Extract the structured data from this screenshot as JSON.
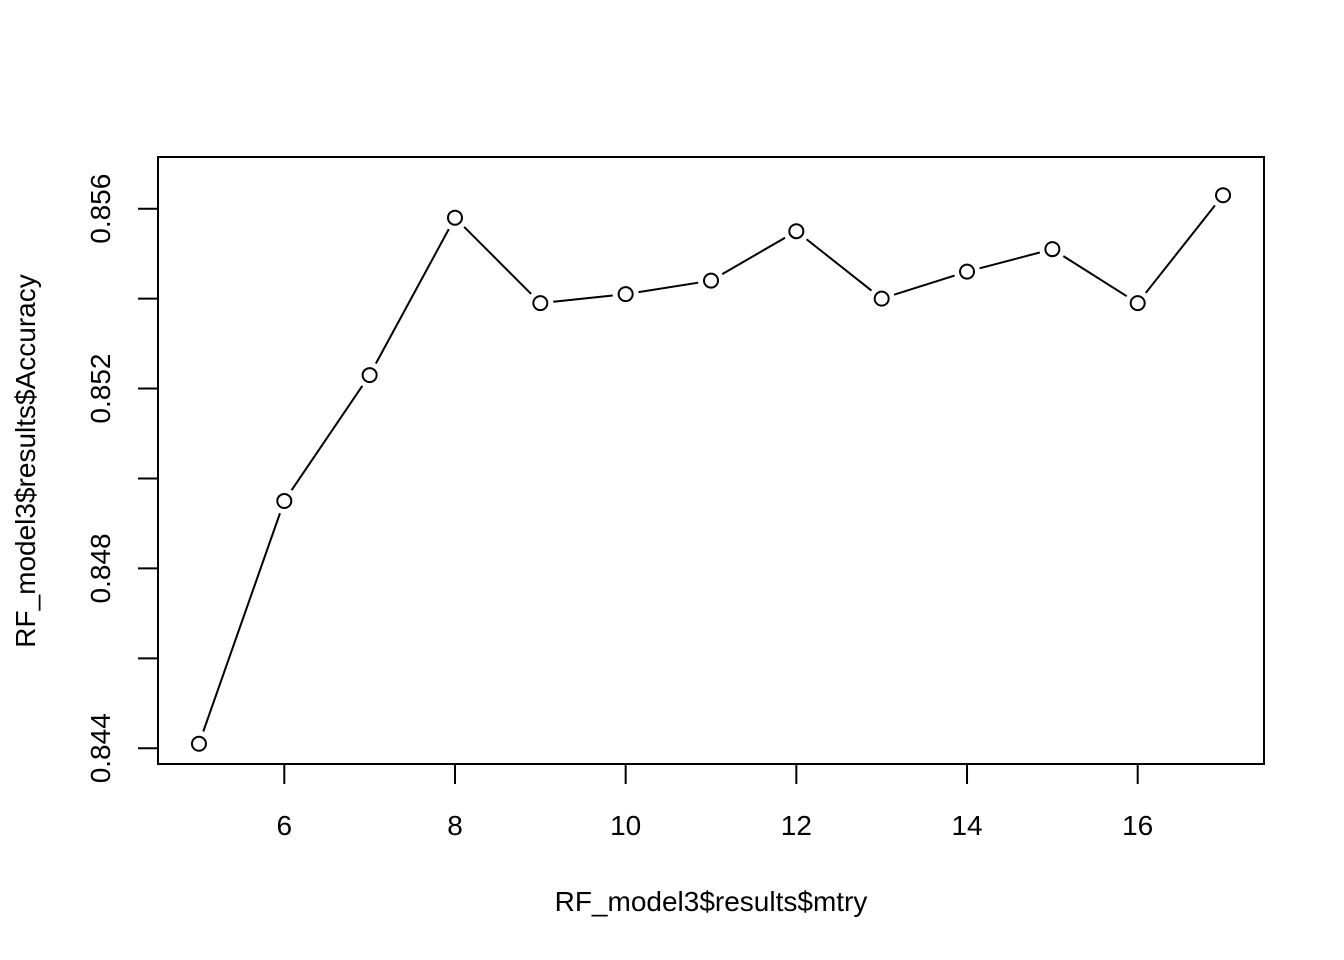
{
  "chart_data": {
    "type": "line",
    "title": "",
    "xlabel": "RF_model3$results$mtry",
    "ylabel": "RF_model3$results$Accuracy",
    "x": [
      5,
      6,
      7,
      8,
      9,
      10,
      11,
      12,
      13,
      14,
      15,
      16,
      17
    ],
    "y": [
      0.8441,
      0.8495,
      0.8523,
      0.8558,
      0.8539,
      0.8541,
      0.8544,
      0.8555,
      0.854,
      0.8546,
      0.8551,
      0.8539,
      0.8563
    ],
    "xlim": [
      4.52,
      17.48
    ],
    "ylim": [
      0.84365,
      0.85715
    ],
    "xticks": [
      6,
      8,
      10,
      12,
      14,
      16
    ],
    "xtick_labels": [
      "6",
      "8",
      "10",
      "12",
      "14",
      "16"
    ],
    "yticks": [
      0.844,
      0.846,
      0.848,
      0.85,
      0.852,
      0.854,
      0.856
    ],
    "ytick_labels": [
      "0.844",
      "",
      "0.848",
      "",
      "0.852",
      "",
      "0.856"
    ],
    "grid": false,
    "marker": "open-circle",
    "line_color": "#000000"
  }
}
